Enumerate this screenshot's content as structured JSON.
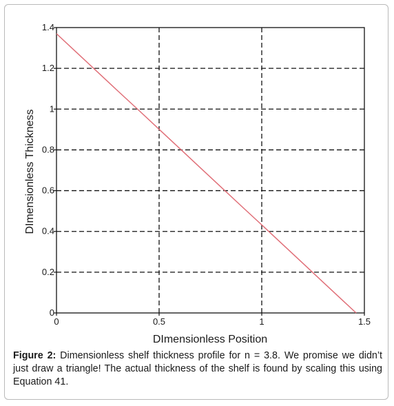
{
  "chart_data": {
    "type": "line",
    "xlabel": "DImensionless Position",
    "ylabel": "DImensionless Thickness",
    "xlim": [
      0,
      1.5
    ],
    "ylim": [
      0,
      1.4
    ],
    "xticks": [
      0,
      0.5,
      1,
      1.5
    ],
    "xtick_labels": [
      "0",
      "0.5",
      "1",
      "1.5"
    ],
    "yticks": [
      0,
      0.2,
      0.4,
      0.6,
      0.8,
      1,
      1.2,
      1.4
    ],
    "ytick_labels": [
      "0",
      "0.2",
      "0.4",
      "0.6",
      "0.8",
      "1",
      "1.2",
      "1.4"
    ],
    "grid": true,
    "grid_style": "dashed",
    "series": [
      {
        "color": "#e06f78",
        "x": [
          0,
          0.1,
          0.2,
          0.3,
          0.4,
          0.5,
          0.6,
          0.7,
          0.8,
          0.9,
          1.0,
          1.1,
          1.2,
          1.3,
          1.4,
          1.46
        ],
        "y": [
          1.37,
          1.276,
          1.182,
          1.088,
          0.995,
          0.901,
          0.807,
          0.713,
          0.619,
          0.525,
          0.432,
          0.338,
          0.244,
          0.15,
          0.056,
          0.0
        ]
      }
    ]
  },
  "caption": {
    "label": "Figure 2:",
    "text": " Dimensionless shelf thickness profile for n = 3.8. We promise we didn’t just draw a triangle! The actual thickness of the shelf is found by scaling this using Equation 41."
  }
}
